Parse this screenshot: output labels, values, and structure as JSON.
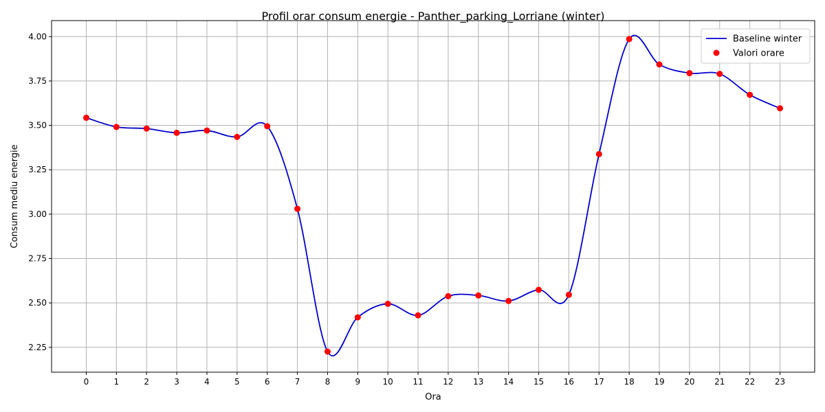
{
  "chart_data": {
    "type": "line",
    "title": "Profil orar consum energie - Panther_parking_Lorriane (winter)",
    "xlabel": "Ora",
    "ylabel": "Consum mediu energie",
    "x": [
      0,
      1,
      2,
      3,
      4,
      5,
      6,
      7,
      8,
      9,
      10,
      11,
      12,
      13,
      14,
      15,
      16,
      17,
      18,
      19,
      20,
      21,
      22,
      23
    ],
    "xlim": [
      -1.15,
      24.15
    ],
    "ylim": [
      2.11,
      4.09
    ],
    "yticks": [
      2.25,
      2.5,
      2.75,
      3.0,
      3.25,
      3.5,
      3.75,
      4.0
    ],
    "ytick_labels": [
      "2.25",
      "2.50",
      "2.75",
      "3.00",
      "3.25",
      "3.50",
      "3.75",
      "4.00"
    ],
    "xtick_labels": [
      "0",
      "1",
      "2",
      "3",
      "4",
      "5",
      "6",
      "7",
      "8",
      "9",
      "10",
      "11",
      "12",
      "13",
      "14",
      "15",
      "16",
      "17",
      "18",
      "19",
      "20",
      "21",
      "22",
      "23"
    ],
    "grid": true,
    "legend_position": "top-right",
    "series": [
      {
        "name": "Baseline winter",
        "kind": "line",
        "color": "#0000cc",
        "values": [
          3.543,
          3.491,
          3.482,
          3.458,
          3.471,
          3.435,
          3.495,
          3.03,
          2.226,
          2.419,
          2.495,
          2.43,
          2.538,
          2.542,
          2.511,
          2.574,
          2.546,
          3.338,
          3.986,
          3.843,
          3.794,
          3.79,
          3.672,
          3.596
        ]
      },
      {
        "name": "Valori orare",
        "kind": "scatter",
        "color": "#ff0000",
        "values": [
          3.543,
          3.491,
          3.482,
          3.458,
          3.471,
          3.435,
          3.495,
          3.03,
          2.226,
          2.419,
          2.495,
          2.43,
          2.538,
          2.542,
          2.511,
          2.574,
          2.546,
          3.338,
          3.986,
          3.843,
          3.794,
          3.79,
          3.672,
          3.596
        ]
      }
    ]
  }
}
